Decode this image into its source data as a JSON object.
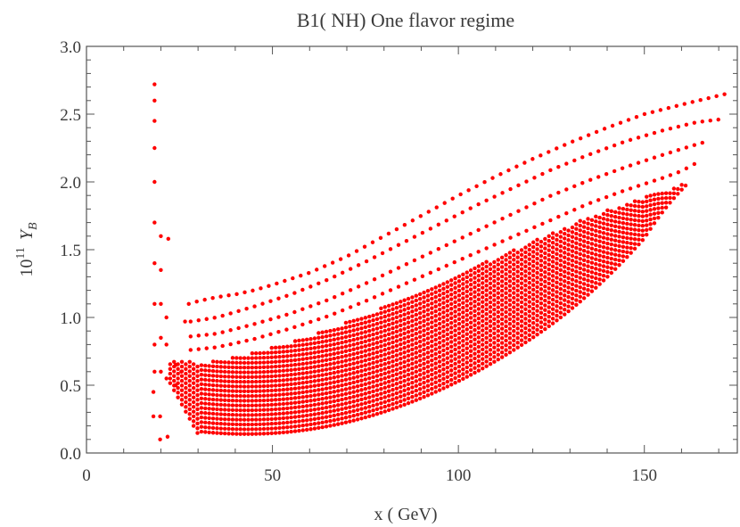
{
  "chart_data": {
    "type": "scatter",
    "title": "B1( NH) One flavor regime",
    "xlabel": "x  ( GeV)",
    "ylabel_prefix": "10",
    "ylabel_exp": "11",
    "ylabel_sym": "Y",
    "ylabel_sub": "B",
    "xlim": [
      0,
      175
    ],
    "ylim": [
      0,
      3.0
    ],
    "xticks": [
      0,
      50,
      100,
      150
    ],
    "xtick_labels": [
      "0",
      "50",
      "100",
      "150"
    ],
    "yticks": [
      0,
      0.5,
      1.0,
      1.5,
      2.0,
      2.5,
      3.0
    ],
    "ytick_labels": [
      "0.0",
      "0.5",
      "1.0",
      "1.5",
      "2.0",
      "2.5",
      "3.0"
    ],
    "grid": false,
    "marker_color": "#ff0000",
    "spike_points": [
      {
        "x": 18.3,
        "y": 2.72
      },
      {
        "x": 18.3,
        "y": 2.6
      },
      {
        "x": 18.3,
        "y": 2.45
      },
      {
        "x": 18.3,
        "y": 2.25
      },
      {
        "x": 18.3,
        "y": 2.0
      },
      {
        "x": 18.3,
        "y": 1.7
      },
      {
        "x": 18.3,
        "y": 1.4
      },
      {
        "x": 18.3,
        "y": 1.1
      },
      {
        "x": 18.3,
        "y": 0.8
      },
      {
        "x": 18.3,
        "y": 0.6
      },
      {
        "x": 20.0,
        "y": 1.6
      },
      {
        "x": 20.0,
        "y": 1.35
      },
      {
        "x": 20.0,
        "y": 1.1
      },
      {
        "x": 20.0,
        "y": 0.85
      },
      {
        "x": 20.0,
        "y": 0.6
      },
      {
        "x": 21.5,
        "y": 1.0
      },
      {
        "x": 21.5,
        "y": 0.8
      },
      {
        "x": 21.5,
        "y": 0.55
      },
      {
        "x": 22.0,
        "y": 1.58
      },
      {
        "x": 24.0,
        "y": 0.65
      },
      {
        "x": 24.0,
        "y": 0.5
      },
      {
        "x": 25.5,
        "y": 0.6
      },
      {
        "x": 26.5,
        "y": 0.97
      },
      {
        "x": 18.0,
        "y": 0.45
      },
      {
        "x": 18.0,
        "y": 0.27
      },
      {
        "x": 19.8,
        "y": 0.27
      },
      {
        "x": 19.8,
        "y": 0.1
      },
      {
        "x": 21.8,
        "y": 0.12
      }
    ],
    "upper_curves": [
      {
        "points": [
          [
            27.5,
            1.1
          ],
          [
            30,
            1.12
          ],
          [
            35,
            1.15
          ],
          [
            40,
            1.17
          ],
          [
            45,
            1.2
          ],
          [
            50,
            1.24
          ],
          [
            60,
            1.33
          ],
          [
            70,
            1.45
          ],
          [
            80,
            1.6
          ],
          [
            90,
            1.75
          ],
          [
            100,
            1.9
          ],
          [
            110,
            2.04
          ],
          [
            120,
            2.17
          ],
          [
            130,
            2.29
          ],
          [
            140,
            2.4
          ],
          [
            150,
            2.5
          ],
          [
            160,
            2.57
          ],
          [
            172,
            2.65
          ]
        ]
      },
      {
        "points": [
          [
            28,
            0.97
          ],
          [
            35,
            1.0
          ],
          [
            45,
            1.08
          ],
          [
            55,
            1.17
          ],
          [
            65,
            1.28
          ],
          [
            75,
            1.41
          ],
          [
            85,
            1.55
          ],
          [
            95,
            1.69
          ],
          [
            105,
            1.83
          ],
          [
            115,
            1.96
          ],
          [
            125,
            2.09
          ],
          [
            135,
            2.2
          ],
          [
            145,
            2.3
          ],
          [
            155,
            2.38
          ],
          [
            164,
            2.44
          ],
          [
            170,
            2.46
          ]
        ]
      },
      {
        "points": [
          [
            28,
            0.86
          ],
          [
            35,
            0.88
          ],
          [
            45,
            0.95
          ],
          [
            55,
            1.03
          ],
          [
            65,
            1.13
          ],
          [
            75,
            1.25
          ],
          [
            85,
            1.38
          ],
          [
            95,
            1.51
          ],
          [
            105,
            1.64
          ],
          [
            115,
            1.77
          ],
          [
            125,
            1.9
          ],
          [
            135,
            2.01
          ],
          [
            145,
            2.11
          ],
          [
            155,
            2.2
          ],
          [
            162,
            2.26
          ],
          [
            167,
            2.3
          ]
        ]
      },
      {
        "points": [
          [
            28,
            0.76
          ],
          [
            35,
            0.78
          ],
          [
            45,
            0.84
          ],
          [
            55,
            0.92
          ],
          [
            65,
            1.01
          ],
          [
            75,
            1.12
          ],
          [
            85,
            1.24
          ],
          [
            95,
            1.36
          ],
          [
            105,
            1.48
          ],
          [
            115,
            1.6
          ],
          [
            125,
            1.72
          ],
          [
            135,
            1.84
          ],
          [
            145,
            1.94
          ],
          [
            155,
            2.03
          ],
          [
            160,
            2.08
          ],
          [
            164,
            2.14
          ]
        ]
      }
    ]
  }
}
